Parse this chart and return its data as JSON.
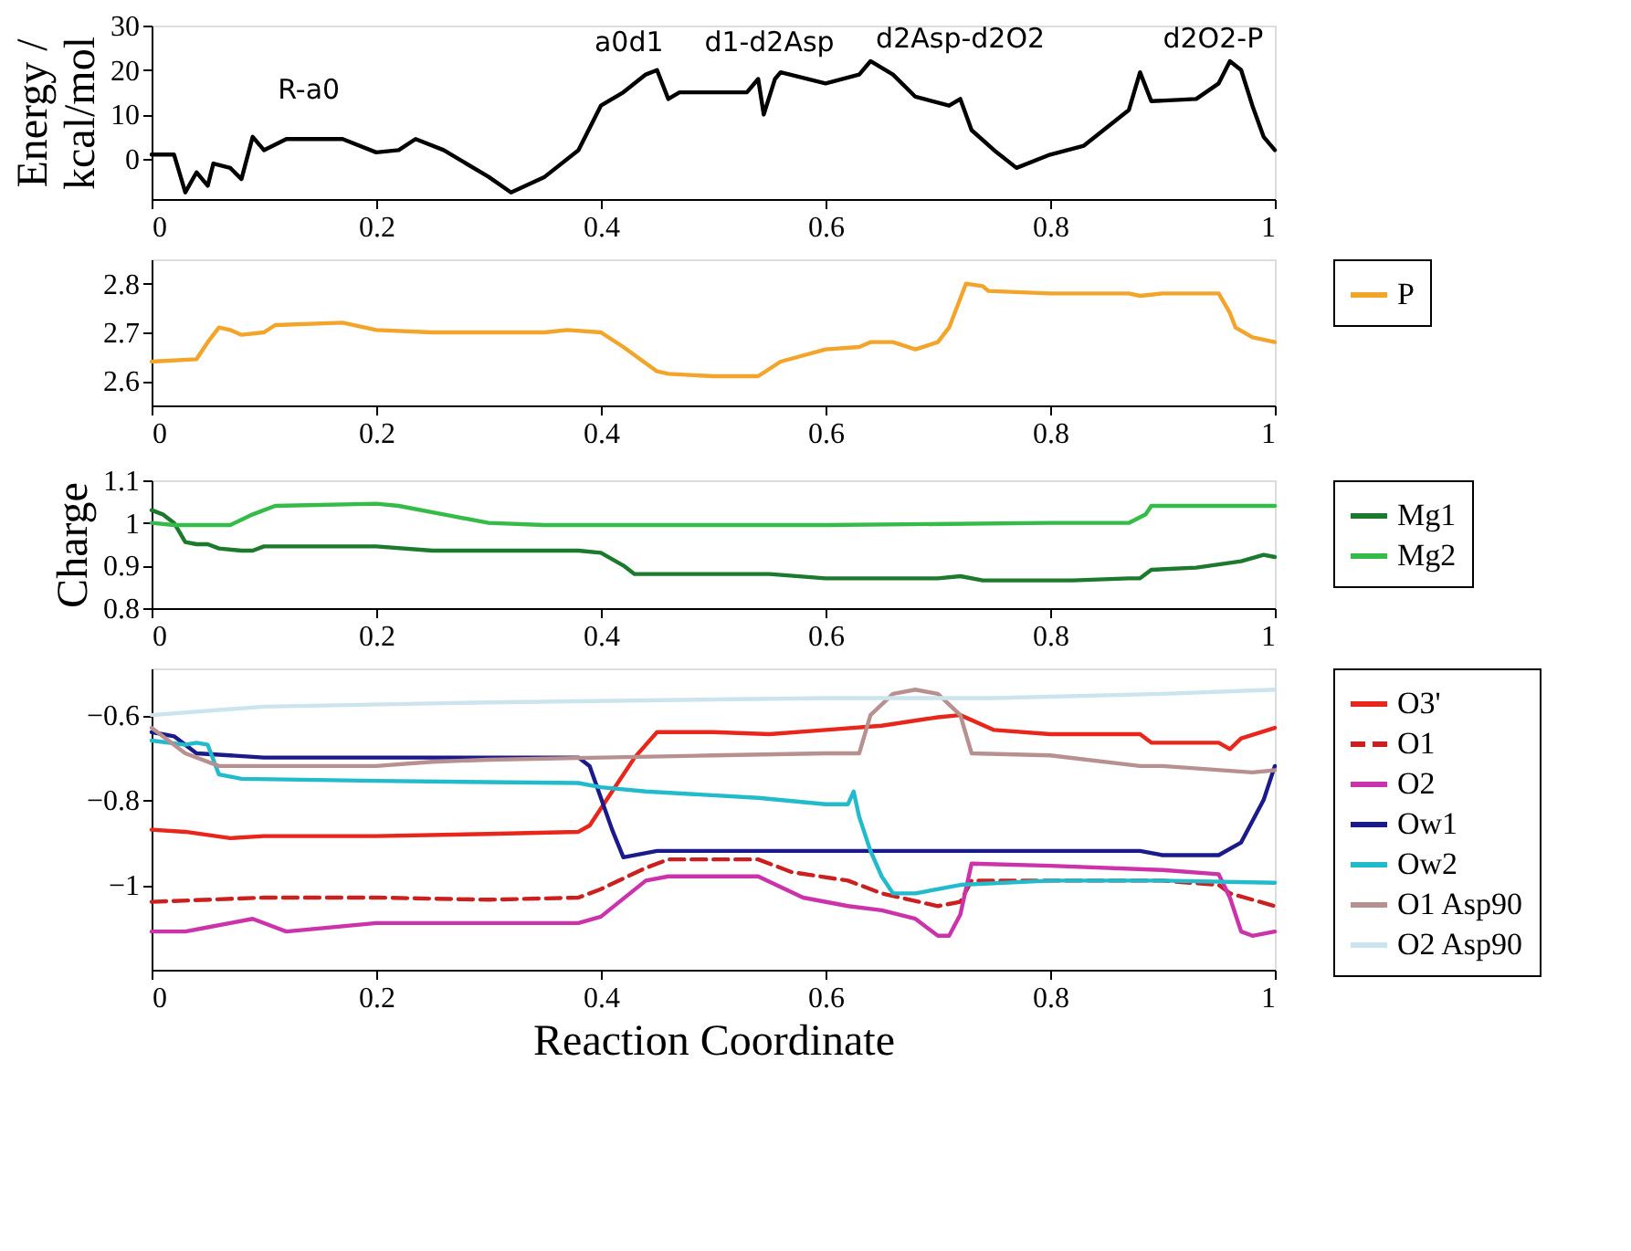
{
  "chart_data": [
    {
      "type": "line",
      "ylabel": "Energy /\nkcal/mol",
      "xlim": [
        0,
        1
      ],
      "xticks": [
        0,
        0.2,
        0.4,
        0.6,
        0.8,
        1
      ],
      "ylim": [
        -9,
        30
      ],
      "yticks": [
        0,
        10,
        20,
        30
      ],
      "annotations": [
        "R-a0",
        "a0d1",
        "d1-d2Asp",
        "d2Asp-d2O2",
        "d2O2-P"
      ],
      "series": [
        {
          "color": "#000000",
          "x": [
            0,
            0.02,
            0.03,
            0.04,
            0.05,
            0.055,
            0.07,
            0.08,
            0.09,
            0.1,
            0.12,
            0.17,
            0.2,
            0.22,
            0.235,
            0.26,
            0.3,
            0.32,
            0.35,
            0.38,
            0.4,
            0.42,
            0.44,
            0.45,
            0.46,
            0.47,
            0.53,
            0.54,
            0.545,
            0.555,
            0.56,
            0.6,
            0.63,
            0.64,
            0.66,
            0.68,
            0.71,
            0.72,
            0.73,
            0.75,
            0.77,
            0.8,
            0.83,
            0.85,
            0.87,
            0.88,
            0.89,
            0.93,
            0.95,
            0.96,
            0.97,
            0.98,
            0.99,
            1.0
          ],
          "values": [
            1,
            1,
            -7.5,
            -3,
            -6,
            -1,
            -2,
            -4.5,
            5,
            2,
            4.5,
            4.5,
            1.5,
            2,
            4.5,
            2,
            -4,
            -7.5,
            -4,
            2,
            12,
            15,
            19,
            20,
            13.5,
            15,
            15,
            18,
            10,
            18,
            19.5,
            17,
            19,
            22,
            19,
            14,
            12,
            13.5,
            6.5,
            2,
            -2,
            1,
            3,
            7,
            11,
            19.5,
            13,
            13.5,
            17,
            22,
            20,
            12,
            5,
            2
          ]
        }
      ]
    },
    {
      "type": "line",
      "xlim": [
        0,
        1
      ],
      "xticks": [
        0,
        0.2,
        0.4,
        0.6,
        0.8,
        1
      ],
      "ylim": [
        2.55,
        2.85
      ],
      "yticks": [
        2.6,
        2.7,
        2.8
      ],
      "legend": "right",
      "series": [
        {
          "name": "P",
          "color": "#f2a52a",
          "x": [
            0,
            0.04,
            0.05,
            0.06,
            0.07,
            0.08,
            0.1,
            0.11,
            0.17,
            0.2,
            0.25,
            0.35,
            0.37,
            0.4,
            0.42,
            0.45,
            0.46,
            0.5,
            0.54,
            0.56,
            0.6,
            0.63,
            0.64,
            0.66,
            0.68,
            0.7,
            0.71,
            0.72,
            0.725,
            0.74,
            0.745,
            0.8,
            0.87,
            0.88,
            0.9,
            0.95,
            0.96,
            0.965,
            0.98,
            1
          ],
          "values": [
            2.64,
            2.645,
            2.68,
            2.71,
            2.705,
            2.695,
            2.7,
            2.715,
            2.72,
            2.705,
            2.7,
            2.7,
            2.705,
            2.7,
            2.67,
            2.62,
            2.615,
            2.61,
            2.61,
            2.64,
            2.665,
            2.67,
            2.68,
            2.68,
            2.665,
            2.68,
            2.71,
            2.77,
            2.8,
            2.795,
            2.785,
            2.78,
            2.78,
            2.775,
            2.78,
            2.78,
            2.74,
            2.71,
            2.69,
            2.68
          ]
        }
      ]
    },
    {
      "type": "line",
      "ylabel": "Charge",
      "xlim": [
        0,
        1
      ],
      "xticks": [
        0,
        0.2,
        0.4,
        0.6,
        0.8,
        1
      ],
      "ylim": [
        0.8,
        1.1
      ],
      "yticks": [
        0.8,
        0.9,
        1,
        1.1
      ],
      "legend": "right",
      "series": [
        {
          "name": "Mg1",
          "color": "#1b7a2c",
          "x": [
            0,
            0.01,
            0.02,
            0.03,
            0.04,
            0.05,
            0.06,
            0.08,
            0.09,
            0.1,
            0.2,
            0.25,
            0.38,
            0.4,
            0.42,
            0.43,
            0.55,
            0.6,
            0.7,
            0.72,
            0.74,
            0.82,
            0.87,
            0.88,
            0.89,
            0.93,
            0.97,
            0.99,
            1
          ],
          "values": [
            1.03,
            1.02,
            1.0,
            0.955,
            0.95,
            0.95,
            0.94,
            0.935,
            0.935,
            0.945,
            0.945,
            0.935,
            0.935,
            0.93,
            0.9,
            0.88,
            0.88,
            0.87,
            0.87,
            0.875,
            0.865,
            0.865,
            0.87,
            0.87,
            0.89,
            0.895,
            0.91,
            0.925,
            0.92
          ]
        },
        {
          "name": "Mg2",
          "color": "#35bb48",
          "x": [
            0,
            0.02,
            0.07,
            0.09,
            0.11,
            0.2,
            0.22,
            0.26,
            0.3,
            0.35,
            0.55,
            0.6,
            0.8,
            0.87,
            0.885,
            0.89,
            1
          ],
          "values": [
            1.0,
            0.995,
            0.995,
            1.02,
            1.04,
            1.045,
            1.04,
            1.02,
            1.0,
            0.995,
            0.995,
            0.995,
            1.0,
            1.0,
            1.02,
            1.04,
            1.04
          ]
        }
      ]
    },
    {
      "type": "line",
      "xlabel": "Reaction Coordinate",
      "xlim": [
        0,
        1
      ],
      "xticks": [
        0,
        0.2,
        0.4,
        0.6,
        0.8,
        1
      ],
      "ylim": [
        -1.2,
        -0.49
      ],
      "yticks": [
        -1,
        -0.8,
        -0.6
      ],
      "legend": "right",
      "series": [
        {
          "name": "O3'",
          "color": "#e8261c",
          "x": [
            0,
            0.03,
            0.07,
            0.1,
            0.2,
            0.3,
            0.38,
            0.39,
            0.41,
            0.43,
            0.45,
            0.5,
            0.55,
            0.6,
            0.65,
            0.7,
            0.72,
            0.75,
            0.8,
            0.88,
            0.89,
            0.95,
            0.96,
            0.97,
            1
          ],
          "values": [
            -0.87,
            -0.875,
            -0.89,
            -0.885,
            -0.885,
            -0.88,
            -0.875,
            -0.86,
            -0.78,
            -0.7,
            -0.64,
            -0.64,
            -0.645,
            -0.635,
            -0.625,
            -0.605,
            -0.6,
            -0.635,
            -0.645,
            -0.645,
            -0.665,
            -0.665,
            -0.68,
            -0.655,
            -0.63
          ]
        },
        {
          "name": "O1",
          "color": "#cc2020",
          "line_style": "dashed",
          "x": [
            0,
            0.1,
            0.2,
            0.3,
            0.38,
            0.4,
            0.44,
            0.46,
            0.54,
            0.57,
            0.62,
            0.65,
            0.7,
            0.72,
            0.73,
            0.8,
            0.9,
            0.95,
            0.96,
            1
          ],
          "values": [
            -1.04,
            -1.03,
            -1.03,
            -1.035,
            -1.03,
            -1.01,
            -0.96,
            -0.94,
            -0.94,
            -0.97,
            -0.99,
            -1.02,
            -1.05,
            -1.04,
            -0.99,
            -0.99,
            -0.99,
            -1.0,
            -1.02,
            -1.05
          ]
        },
        {
          "name": "O2",
          "color": "#cc33aa",
          "x": [
            0,
            0.03,
            0.05,
            0.07,
            0.09,
            0.12,
            0.2,
            0.3,
            0.38,
            0.4,
            0.44,
            0.46,
            0.54,
            0.58,
            0.62,
            0.65,
            0.68,
            0.7,
            0.71,
            0.72,
            0.73,
            0.8,
            0.9,
            0.95,
            0.96,
            0.97,
            0.98,
            1
          ],
          "values": [
            -1.11,
            -1.11,
            -1.1,
            -1.09,
            -1.08,
            -1.11,
            -1.09,
            -1.09,
            -1.09,
            -1.075,
            -0.99,
            -0.98,
            -0.98,
            -1.03,
            -1.05,
            -1.06,
            -1.08,
            -1.12,
            -1.12,
            -1.07,
            -0.95,
            -0.955,
            -0.965,
            -0.975,
            -1.03,
            -1.11,
            -1.12,
            -1.11
          ]
        },
        {
          "name": "Ow1",
          "color": "#1a1a8a",
          "x": [
            0,
            0.02,
            0.04,
            0.1,
            0.38,
            0.39,
            0.41,
            0.42,
            0.45,
            0.6,
            0.88,
            0.9,
            0.95,
            0.97,
            0.99,
            1
          ],
          "values": [
            -0.64,
            -0.65,
            -0.69,
            -0.7,
            -0.7,
            -0.72,
            -0.87,
            -0.935,
            -0.92,
            -0.92,
            -0.92,
            -0.93,
            -0.93,
            -0.9,
            -0.8,
            -0.72
          ]
        },
        {
          "name": "Ow2",
          "color": "#22bbcc",
          "x": [
            0,
            0.03,
            0.04,
            0.05,
            0.06,
            0.08,
            0.2,
            0.38,
            0.4,
            0.44,
            0.54,
            0.6,
            0.62,
            0.625,
            0.63,
            0.64,
            0.65,
            0.66,
            0.68,
            0.72,
            0.8,
            0.9,
            1
          ],
          "values": [
            -0.66,
            -0.67,
            -0.665,
            -0.67,
            -0.74,
            -0.75,
            -0.755,
            -0.76,
            -0.77,
            -0.78,
            -0.795,
            -0.81,
            -0.81,
            -0.78,
            -0.84,
            -0.92,
            -0.98,
            -1.02,
            -1.02,
            -1.0,
            -0.99,
            -0.99,
            -0.995
          ]
        },
        {
          "name": "O1 Asp90",
          "color": "#b89090",
          "x": [
            0,
            0.03,
            0.06,
            0.1,
            0.2,
            0.25,
            0.3,
            0.4,
            0.5,
            0.6,
            0.63,
            0.64,
            0.66,
            0.68,
            0.7,
            0.72,
            0.73,
            0.8,
            0.88,
            0.9,
            0.98,
            1
          ],
          "values": [
            -0.63,
            -0.69,
            -0.72,
            -0.72,
            -0.72,
            -0.71,
            -0.705,
            -0.7,
            -0.695,
            -0.69,
            -0.69,
            -0.6,
            -0.55,
            -0.54,
            -0.55,
            -0.6,
            -0.69,
            -0.695,
            -0.72,
            -0.72,
            -0.735,
            -0.73
          ]
        },
        {
          "name": "O2 Asp90",
          "color": "#cce4ee",
          "x": [
            0,
            0.1,
            0.3,
            0.6,
            0.75,
            0.9,
            1
          ],
          "values": [
            -0.6,
            -0.58,
            -0.57,
            -0.56,
            -0.56,
            -0.55,
            -0.54
          ]
        }
      ]
    }
  ]
}
